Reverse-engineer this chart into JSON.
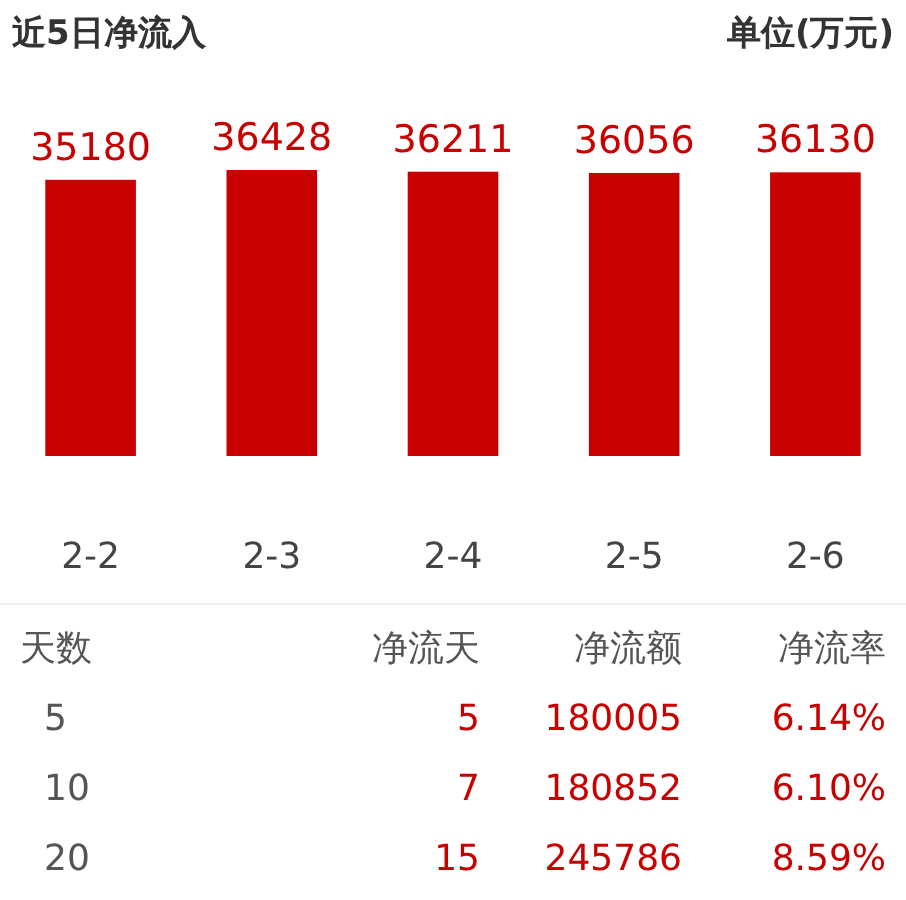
{
  "chart_data": [
    {
      "type": "bar",
      "title": "近5日净流入",
      "subtitle": "单位(万元)",
      "categories": [
        "2-2",
        "2-3",
        "2-4",
        "2-5",
        "2-6"
      ],
      "values": [
        35180,
        36428,
        36211,
        36056,
        36130
      ],
      "color": "#c80000",
      "data_labels": true
    },
    {
      "type": "other",
      "annotations": [
        "天数",
        "净流天",
        "净流额",
        "净流率",
        "5",
        "5",
        "180005",
        "6.14%",
        "10",
        "7",
        "180852",
        "6.10%",
        "20",
        "15",
        "245786",
        "8.59%"
      ]
    }
  ]
}
